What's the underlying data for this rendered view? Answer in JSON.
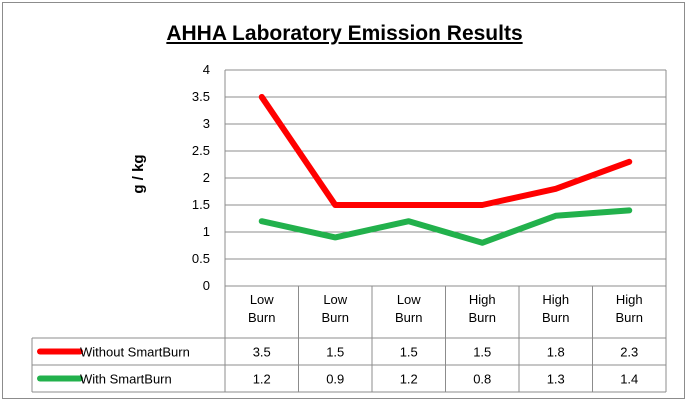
{
  "chart_data": {
    "type": "line",
    "title": "AHHA Laboratory Emission Results",
    "ylabel": "g / kg",
    "xlabel": "",
    "ylim": [
      0,
      4
    ],
    "yticks": [
      "0",
      "0.5",
      "1",
      "1.5",
      "2",
      "2.5",
      "3",
      "3.5",
      "4"
    ],
    "categories": [
      [
        "Low",
        "Burn"
      ],
      [
        "Low",
        "Burn"
      ],
      [
        "Low",
        "Burn"
      ],
      [
        "High",
        "Burn"
      ],
      [
        "High",
        "Burn"
      ],
      [
        "High",
        "Burn"
      ]
    ],
    "grid": true,
    "legend": "data-table",
    "series": [
      {
        "name": "Without SmartBurn",
        "color": "#ff0000",
        "values": [
          3.5,
          1.5,
          1.5,
          1.5,
          1.8,
          2.3
        ],
        "labels": [
          "3.5",
          "1.5",
          "1.5",
          "1.5",
          "1.8",
          "2.3"
        ]
      },
      {
        "name": "With SmartBurn",
        "color": "#22b14c",
        "values": [
          1.2,
          0.9,
          1.2,
          0.8,
          1.3,
          1.4
        ],
        "labels": [
          "1.2",
          "0.9",
          "1.2",
          "0.8",
          "1.3",
          "1.4"
        ]
      }
    ]
  }
}
